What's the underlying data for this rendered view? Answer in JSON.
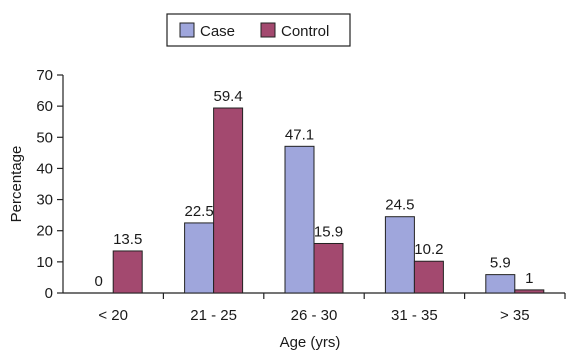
{
  "chart_data": {
    "type": "bar",
    "categories": [
      "< 20",
      "21 - 25",
      "26 - 30",
      "31 - 35",
      "> 35"
    ],
    "series": [
      {
        "name": "Case",
        "values": [
          0,
          22.5,
          47.1,
          24.5,
          5.9
        ],
        "labels": [
          "0",
          "22.5",
          "47.1",
          "24.5",
          "5.9"
        ],
        "color": "#9fa6dc"
      },
      {
        "name": "Control",
        "values": [
          13.5,
          59.4,
          15.9,
          10.2,
          1
        ],
        "labels": [
          "13.5",
          "59.4",
          "15.9",
          "10.2",
          "1"
        ],
        "color": "#a3496f"
      }
    ],
    "xlabel": "Age (yrs)",
    "ylabel": "Percentage",
    "ylim": [
      0,
      70
    ],
    "yticks": [
      0,
      10,
      20,
      30,
      40,
      50,
      60,
      70
    ],
    "grid": false,
    "legend_position": "top"
  }
}
